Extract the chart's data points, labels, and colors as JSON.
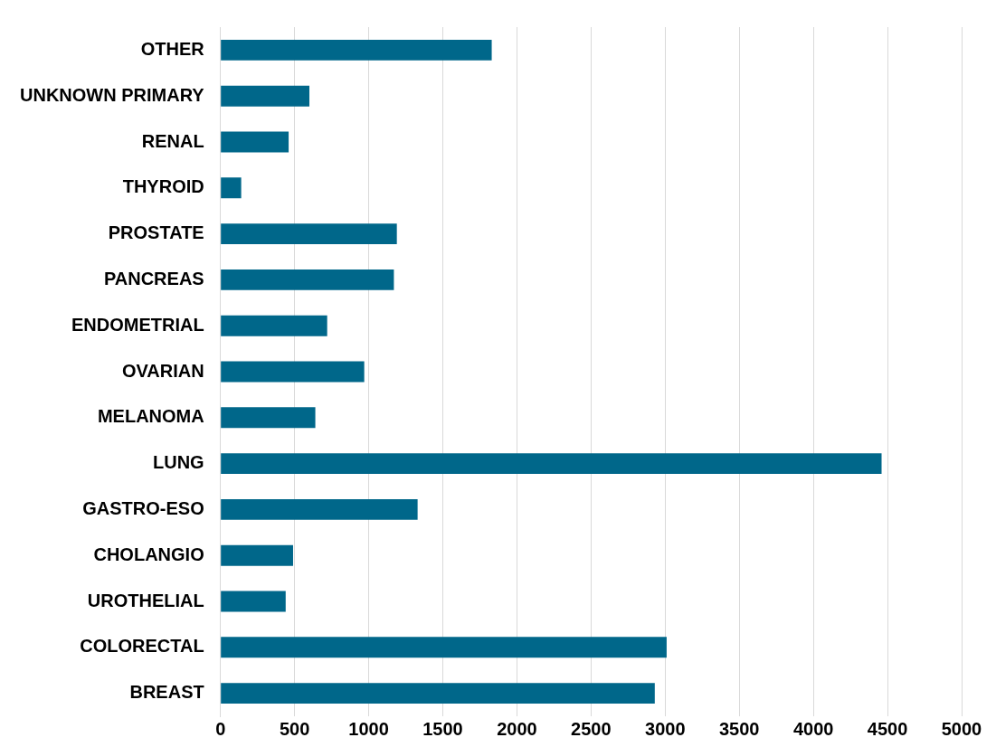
{
  "chart_data": {
    "type": "bar",
    "orientation": "horizontal",
    "categories": [
      "OTHER",
      "UNKNOWN PRIMARY",
      "RENAL",
      "THYROID",
      "PROSTATE",
      "PANCREAS",
      "ENDOMETRIAL",
      "OVARIAN",
      "MELANOMA",
      "LUNG",
      "GASTRO-ESO",
      "CHOLANGIO",
      "UROTHELIAL",
      "COLORECTAL",
      "BREAST"
    ],
    "values": [
      1830,
      600,
      460,
      140,
      1190,
      1170,
      720,
      970,
      640,
      4460,
      1330,
      490,
      440,
      3010,
      2930
    ],
    "color": "#00678a",
    "xlim": [
      0,
      5000
    ],
    "xticks": [
      0,
      500,
      1000,
      1500,
      2000,
      2500,
      3000,
      3500,
      4000,
      4500,
      5000
    ],
    "grid": "x",
    "legend": false
  }
}
